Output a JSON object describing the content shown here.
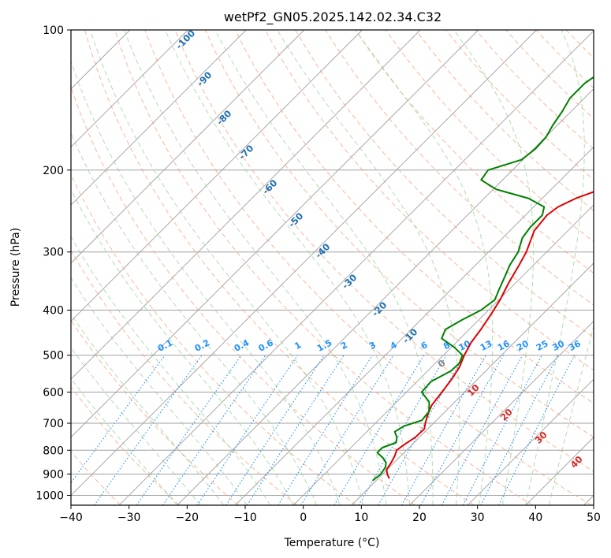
{
  "chart_data": {
    "type": "skew-t",
    "title": "wetPf2_GN05.2025.142.02.34.C32",
    "xlabel": "Temperature (°C)",
    "ylabel": "Pressure (hPa)",
    "xlim": [
      -40,
      50
    ],
    "ylim": [
      1050,
      100
    ],
    "x_ticks": [
      -40,
      -30,
      -20,
      -10,
      0,
      10,
      20,
      30,
      40,
      50
    ],
    "y_ticks": [
      100,
      200,
      300,
      400,
      500,
      600,
      700,
      800,
      900,
      1000
    ],
    "grid": true,
    "isotherm_spacing": 10,
    "dry_adiabat_labels": [
      "-100",
      "-90",
      "-80",
      "-70",
      "-60",
      "-50",
      "-40",
      "-30",
      "-20",
      "-10"
    ],
    "moist_adiabat_labels": [
      "0",
      "10",
      "20",
      "30",
      "40"
    ],
    "mixing_ratio_labels": [
      "0.1",
      "0.2",
      "0.4",
      "0.6",
      "1",
      "1.5",
      "2",
      "3",
      "4",
      "6",
      "8",
      "10",
      "13",
      "16",
      "20",
      "25",
      "30",
      "36"
    ],
    "colors": {
      "temperature": "#e00000",
      "dewpoint": "#008000",
      "dry_adiabat": "#f4a07a",
      "moist_adiabat": "#8fcf8f",
      "mixing_ratio": "#1e90ff",
      "isotherm": "#a0a0a0",
      "dry_adiabat_label": "#1f6fb0",
      "moist_adiabat_label": "#d62728"
    },
    "series": [
      {
        "name": "Temperature",
        "points": [
          [
            920,
            11.9
          ],
          [
            900,
            10.8
          ],
          [
            880,
            9.9
          ],
          [
            850,
            9.5
          ],
          [
            820,
            8.9
          ],
          [
            800,
            8.3
          ],
          [
            780,
            8.6
          ],
          [
            750,
            9.3
          ],
          [
            720,
            9.4
          ],
          [
            700,
            8.6
          ],
          [
            670,
            7.5
          ],
          [
            640,
            6.6
          ],
          [
            600,
            6.1
          ],
          [
            560,
            5.5
          ],
          [
            530,
            4.8
          ],
          [
            500,
            3.6
          ],
          [
            470,
            2.6
          ],
          [
            440,
            2.0
          ],
          [
            410,
            1.2
          ],
          [
            380,
            0.2
          ],
          [
            350,
            -1.2
          ],
          [
            320,
            -2.5
          ],
          [
            300,
            -3.5
          ],
          [
            270,
            -5.8
          ],
          [
            250,
            -6.3
          ],
          [
            240,
            -5.8
          ],
          [
            230,
            -4.2
          ],
          [
            220,
            -1.5
          ],
          [
            210,
            2.8
          ],
          [
            200,
            6.3
          ],
          [
            190,
            8.0
          ],
          [
            180,
            9.3
          ],
          [
            170,
            10.9
          ],
          [
            160,
            12.3
          ],
          [
            150,
            13.7
          ],
          [
            140,
            14.3
          ],
          [
            130,
            15.7
          ],
          [
            120,
            16.9
          ],
          [
            110,
            17.6
          ],
          [
            100,
            19.5
          ]
        ]
      },
      {
        "name": "Dewpoint",
        "points": [
          [
            930,
            9.4
          ],
          [
            900,
            9.7
          ],
          [
            870,
            9.3
          ],
          [
            850,
            8.6
          ],
          [
            830,
            7.2
          ],
          [
            810,
            5.4
          ],
          [
            790,
            5.4
          ],
          [
            770,
            6.9
          ],
          [
            750,
            6.1
          ],
          [
            730,
            4.8
          ],
          [
            710,
            5.4
          ],
          [
            690,
            7.5
          ],
          [
            660,
            7.2
          ],
          [
            630,
            5.6
          ],
          [
            600,
            2.6
          ],
          [
            570,
            2.4
          ],
          [
            540,
            4.0
          ],
          [
            520,
            4.1
          ],
          [
            500,
            3.3
          ],
          [
            480,
            0.4
          ],
          [
            460,
            -3.2
          ],
          [
            440,
            -4.1
          ],
          [
            420,
            -2.9
          ],
          [
            400,
            -1.3
          ],
          [
            380,
            -0.7
          ],
          [
            360,
            -1.8
          ],
          [
            340,
            -2.9
          ],
          [
            320,
            -4.1
          ],
          [
            300,
            -4.9
          ],
          [
            280,
            -6.6
          ],
          [
            265,
            -7.1
          ],
          [
            250,
            -7.1
          ],
          [
            240,
            -8.2
          ],
          [
            230,
            -12.4
          ],
          [
            220,
            -19.5
          ],
          [
            210,
            -23.7
          ],
          [
            200,
            -24.2
          ],
          [
            190,
            -20.2
          ],
          [
            180,
            -19.7
          ],
          [
            170,
            -19.9
          ],
          [
            160,
            -20.8
          ],
          [
            150,
            -21.5
          ],
          [
            140,
            -22.5
          ],
          [
            130,
            -22.5
          ],
          [
            120,
            -21.2
          ],
          [
            110,
            -18.9
          ],
          [
            100,
            -16.5
          ]
        ]
      }
    ]
  }
}
